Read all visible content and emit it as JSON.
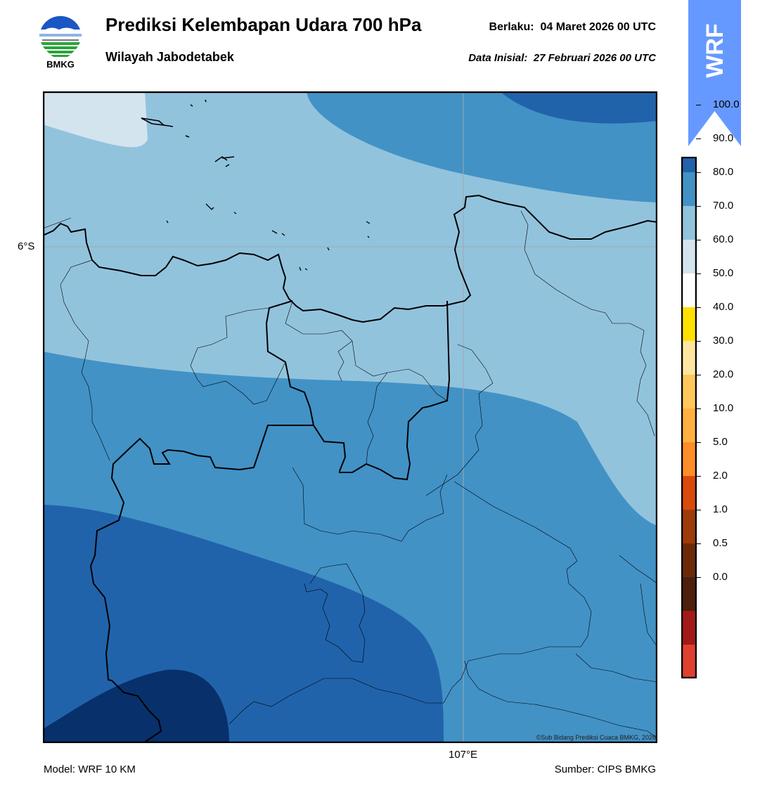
{
  "header": {
    "title": "Prediksi Kelembapan Udara 700 hPa",
    "subtitle": "Wilayah Jabodetabek",
    "valid_label": "Berlaku:",
    "valid_time": "04 Maret 2026 00 UTC",
    "init_label": "Data Inisial:",
    "init_time": "27 Februari 2026 00 UTC"
  },
  "logo": {
    "text": "BMKG",
    "icon": "bmkg-logo-icon"
  },
  "badge": {
    "text": "WRF",
    "color": "#6699ff",
    "icon": "up-arrow-icon"
  },
  "map": {
    "lat_label": "6°S",
    "lon_label": "107°E",
    "copyright": "©Sub Bidang Prediksi Cuaca BMKG, 2026",
    "shading_colors": [
      "#d4e4ef",
      "#92c3dd",
      "#4292c6",
      "#2163ab",
      "#08306b"
    ],
    "gridline_color": "#a0a8b0",
    "coastline_color": "#000000"
  },
  "footer": {
    "model": "Model: WRF 10 KM",
    "source": "Sumber: CIPS BMKG"
  },
  "colorbar": {
    "labels": [
      "100.0",
      "90.0",
      "80.0",
      "70.0",
      "60.0",
      "50.0",
      "40.0",
      "30.0",
      "20.0",
      "10.0",
      "5.0",
      "2.0",
      "1.0",
      "0.5",
      "0.0"
    ],
    "colors_top_to_bottom": [
      "#2c0a4e",
      "#08306b",
      "#2163ab",
      "#4292c6",
      "#92c3dd",
      "#d4e4ef",
      "#ffffff",
      "#ffe000",
      "#ffe6a0",
      "#ffc75a",
      "#ffb040",
      "#fc8d27",
      "#d94b0a",
      "#9d3b09",
      "#6e2a08",
      "#4e1f0a",
      "#a51818",
      "#e04030"
    ]
  }
}
